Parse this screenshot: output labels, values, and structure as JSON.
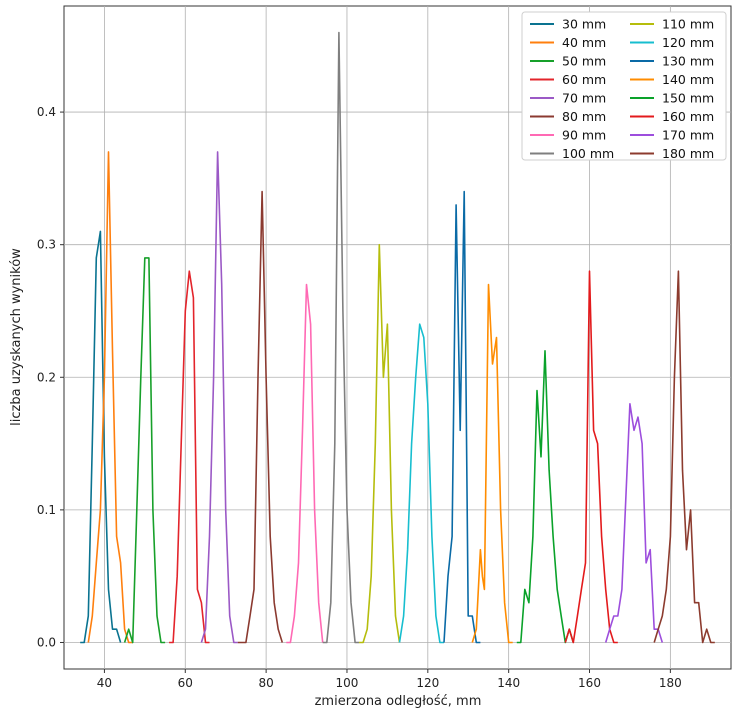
{
  "chart_data": {
    "type": "line",
    "title": "",
    "xlabel": "zmierzona odległość, mm",
    "ylabel": "liczba uzyskanych wyników",
    "xlim": [
      30,
      195
    ],
    "ylim": [
      -0.02,
      0.48
    ],
    "xticks": [
      40,
      60,
      80,
      100,
      120,
      140,
      160,
      180
    ],
    "yticks": [
      0.0,
      0.1,
      0.2,
      0.3,
      0.4
    ],
    "ytick_labels": [
      "0.0",
      "0.1",
      "0.2",
      "0.3",
      "0.4"
    ],
    "grid": true,
    "legend_position": "top-right",
    "legend_columns": 2,
    "series": [
      {
        "name": "30 mm",
        "color": "#0a7390",
        "x": [
          34,
          35,
          36,
          37,
          38,
          39,
          40,
          41,
          42,
          43,
          44
        ],
        "y": [
          0,
          0,
          0.02,
          0.15,
          0.29,
          0.31,
          0.14,
          0.04,
          0.01,
          0.01,
          0
        ]
      },
      {
        "name": "40 mm",
        "color": "#ff7f0e",
        "x": [
          36,
          37,
          38,
          39,
          40,
          41,
          42,
          43,
          44,
          45,
          46,
          47
        ],
        "y": [
          0,
          0.02,
          0.06,
          0.1,
          0.2,
          0.37,
          0.22,
          0.08,
          0.06,
          0.01,
          0,
          0
        ]
      },
      {
        "name": "50 mm",
        "color": "#17a02a",
        "x": [
          45,
          46,
          47,
          48,
          49,
          50,
          51,
          52,
          53,
          54,
          55
        ],
        "y": [
          0,
          0.01,
          0,
          0.1,
          0.2,
          0.29,
          0.29,
          0.1,
          0.02,
          0,
          0
        ]
      },
      {
        "name": "60 mm",
        "color": "#e3242b",
        "x": [
          56,
          57,
          58,
          59,
          60,
          61,
          62,
          63,
          64,
          65,
          66
        ],
        "y": [
          0,
          0,
          0.05,
          0.15,
          0.25,
          0.28,
          0.26,
          0.04,
          0.03,
          0,
          0
        ]
      },
      {
        "name": "70 mm",
        "color": "#9b59c6",
        "x": [
          64,
          65,
          66,
          67,
          68,
          69,
          70,
          71,
          72,
          73
        ],
        "y": [
          0,
          0.01,
          0.08,
          0.2,
          0.37,
          0.27,
          0.1,
          0.02,
          0,
          0
        ]
      },
      {
        "name": "80 mm",
        "color": "#8b3a30",
        "x": [
          73,
          74,
          75,
          76,
          77,
          78,
          79,
          80,
          81,
          82,
          83,
          84
        ],
        "y": [
          0,
          0,
          0,
          0.02,
          0.04,
          0.2,
          0.34,
          0.2,
          0.08,
          0.03,
          0.01,
          0
        ]
      },
      {
        "name": "90 mm",
        "color": "#ff69b4",
        "x": [
          85,
          86,
          87,
          88,
          89,
          90,
          91,
          92,
          93,
          94
        ],
        "y": [
          0,
          0,
          0.02,
          0.06,
          0.16,
          0.27,
          0.24,
          0.1,
          0.03,
          0
        ]
      },
      {
        "name": "100 mm",
        "color": "#7f7f7f",
        "x": [
          94,
          95,
          96,
          97,
          98,
          99,
          100,
          101,
          102,
          103
        ],
        "y": [
          0,
          0,
          0.03,
          0.15,
          0.46,
          0.25,
          0.1,
          0.03,
          0,
          0
        ]
      },
      {
        "name": "110 mm",
        "color": "#b5bd0c",
        "x": [
          103,
          104,
          105,
          106,
          107,
          108,
          109,
          110,
          111,
          112,
          113
        ],
        "y": [
          0,
          0,
          0.01,
          0.05,
          0.15,
          0.3,
          0.2,
          0.24,
          0.1,
          0.02,
          0
        ]
      },
      {
        "name": "120 mm",
        "color": "#17becf",
        "x": [
          113,
          114,
          115,
          116,
          117,
          118,
          119,
          120,
          121,
          122,
          123,
          124
        ],
        "y": [
          0,
          0.02,
          0.07,
          0.15,
          0.2,
          0.24,
          0.23,
          0.18,
          0.08,
          0.02,
          0,
          0
        ]
      },
      {
        "name": "130 mm",
        "color": "#0a6aa6",
        "x": [
          124,
          125,
          126,
          127,
          128,
          129,
          130,
          131,
          132,
          133
        ],
        "y": [
          0,
          0.05,
          0.08,
          0.33,
          0.16,
          0.34,
          0.02,
          0.02,
          0,
          0
        ]
      },
      {
        "name": "140 mm",
        "color": "#ff8c00",
        "x": [
          131,
          132,
          133,
          133.5,
          134,
          135,
          136,
          137,
          138,
          139,
          140,
          141
        ],
        "y": [
          0,
          0.01,
          0.07,
          0.05,
          0.04,
          0.27,
          0.21,
          0.23,
          0.1,
          0.03,
          0,
          0
        ]
      },
      {
        "name": "150 mm",
        "color": "#0aa22a",
        "x": [
          142,
          143,
          144,
          145,
          146,
          147,
          148,
          149,
          150,
          151,
          152,
          153,
          154,
          155,
          156
        ],
        "y": [
          0,
          0,
          0.04,
          0.03,
          0.08,
          0.19,
          0.14,
          0.22,
          0.13,
          0.08,
          0.04,
          0.02,
          0,
          0.01,
          0
        ]
      },
      {
        "name": "160 mm",
        "color": "#e31a1c",
        "x": [
          154,
          155,
          156,
          157,
          158,
          159,
          160,
          161,
          162,
          163,
          164,
          165,
          166,
          167
        ],
        "y": [
          0,
          0.01,
          0,
          0.02,
          0.04,
          0.06,
          0.28,
          0.16,
          0.15,
          0.08,
          0.04,
          0.01,
          0,
          0
        ]
      },
      {
        "name": "170 mm",
        "color": "#9d4edd",
        "x": [
          164,
          165,
          166,
          167,
          168,
          169,
          170,
          171,
          172,
          173,
          174,
          175,
          176,
          177,
          178
        ],
        "y": [
          0,
          0.01,
          0.02,
          0.02,
          0.04,
          0.11,
          0.18,
          0.16,
          0.17,
          0.15,
          0.06,
          0.07,
          0.01,
          0.01,
          0
        ]
      },
      {
        "name": "180 mm",
        "color": "#8c3b2e",
        "x": [
          176,
          177,
          178,
          179,
          180,
          181,
          182,
          183,
          184,
          185,
          186,
          187,
          188,
          189,
          190,
          191
        ],
        "y": [
          0,
          0.01,
          0.02,
          0.04,
          0.08,
          0.2,
          0.28,
          0.13,
          0.07,
          0.1,
          0.03,
          0.03,
          0,
          0.01,
          0,
          0
        ]
      }
    ]
  }
}
